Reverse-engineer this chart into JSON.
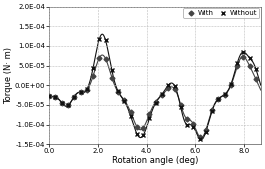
{
  "title": "",
  "xlabel": "Rotation angle (deg)",
  "ylabel": "Torque (N· m)",
  "xlim": [
    0.0,
    8.7
  ],
  "ylim": [
    -0.00015,
    0.0002
  ],
  "xticks": [
    0.0,
    2.0,
    4.0,
    6.0,
    8.0
  ],
  "yticks": [
    -0.00015,
    -0.0001,
    -5e-05,
    0.0,
    5e-05,
    0.0001,
    0.00015,
    0.0002
  ],
  "ytick_labels": [
    "-1.5E-04",
    "-1.0E-04",
    "-5.0E-05",
    "0.0E+00",
    "5.0E-05",
    "1.0E-04",
    "1.5E-04",
    "2.0E-04"
  ],
  "with_color": "#444444",
  "without_color": "#111111",
  "marker_with": "D",
  "marker_without": "x",
  "legend_with": "With",
  "legend_without": "Without",
  "background_color": "#ffffff",
  "grid_color": "#bbbbbb"
}
